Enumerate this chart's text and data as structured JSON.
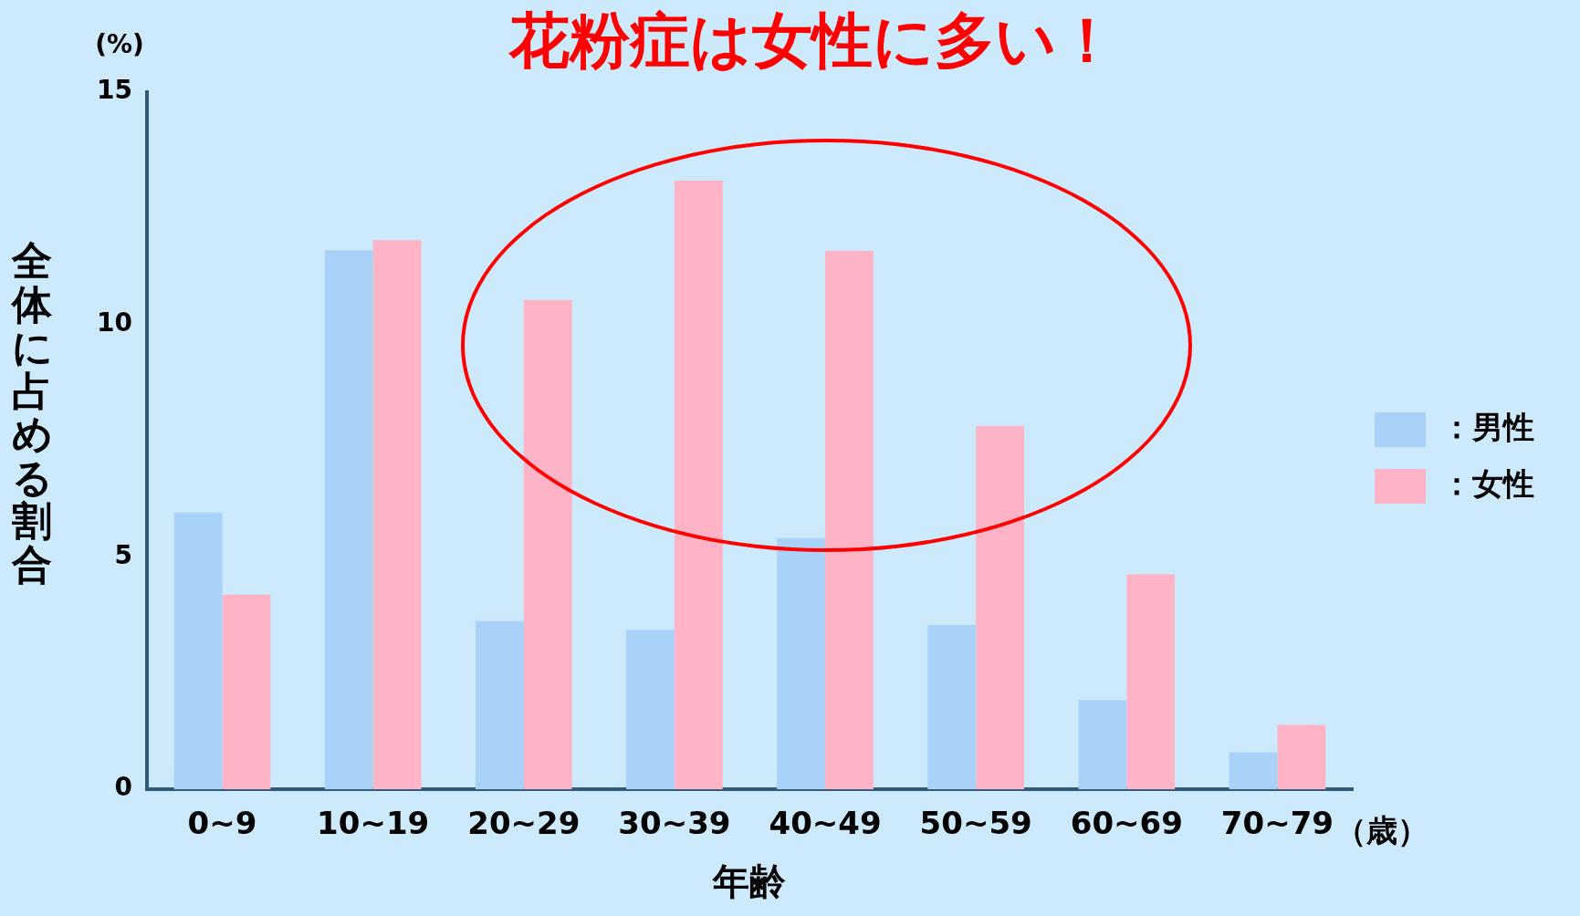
{
  "chart_data": {
    "type": "bar",
    "title": "花粉症は女性に多い！",
    "xlabel": "年齢",
    "ylabel": "全体に占める割合",
    "categories": [
      "0~9",
      "10~19",
      "20~29",
      "30~39",
      "40~49",
      "50~59",
      "60~69",
      "70~79"
    ],
    "series": [
      {
        "name": "：男性",
        "color": "#a8d2f8",
        "values": [
          5.96,
          11.6,
          3.62,
          3.43,
          5.41,
          3.54,
          1.92,
          0.8
        ]
      },
      {
        "name": "：女性",
        "color": "#ffb3c7",
        "values": [
          4.19,
          11.82,
          10.53,
          13.1,
          11.59,
          7.82,
          4.63,
          1.39
        ]
      }
    ],
    "ylim": [
      0,
      15
    ],
    "yticks": [
      0,
      5,
      10,
      15
    ],
    "grid": false,
    "legend": "right",
    "annotations": [
      "(%)",
      "（歳）"
    ]
  }
}
